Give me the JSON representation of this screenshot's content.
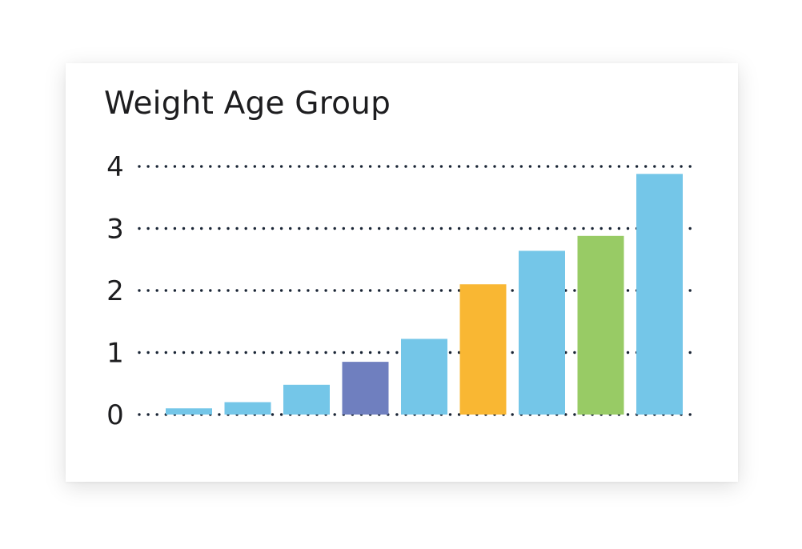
{
  "chart_data": {
    "type": "bar",
    "title": "Weight Age Group",
    "xlabel": "",
    "ylabel": "",
    "ylim": [
      0,
      4
    ],
    "yticks": [
      "0",
      "1",
      "2",
      "3",
      "4"
    ],
    "grid": true,
    "categories": [
      "",
      "",
      "",
      "",
      "",
      "",
      "",
      "",
      ""
    ],
    "values": [
      0.1,
      0.2,
      0.48,
      0.85,
      1.22,
      2.1,
      2.64,
      2.88,
      3.88
    ],
    "colors": [
      "#74c6e8",
      "#74c6e8",
      "#74c6e8",
      "#6f7fbf",
      "#74c6e8",
      "#f9b733",
      "#74c6e8",
      "#98cb65",
      "#74c6e8"
    ],
    "grid_color": "#1a2535"
  }
}
